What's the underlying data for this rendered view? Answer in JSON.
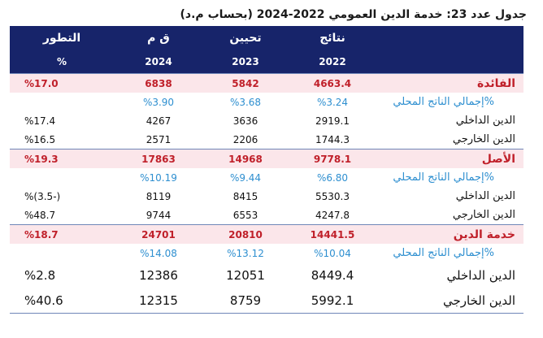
{
  "title": "جدول عدد  23: خدمة الدين العمومي 2022-2024 (بحساب م.د)",
  "header": {
    "row1": [
      "",
      "نتائج",
      "تحيين",
      "ق م",
      "التطور"
    ],
    "row2": [
      "",
      "2022",
      "2023",
      "2024",
      "%"
    ]
  },
  "rows": [
    {
      "type": "section",
      "cells": [
        "الفائدة",
        "4663.4",
        "5842",
        "6838",
        "%17.0"
      ]
    },
    {
      "type": "pct",
      "cells": [
        "%إجمالي الناتج المحلي",
        "%3.24",
        "%3.68",
        "%3.90",
        ""
      ]
    },
    {
      "type": "normal",
      "cells": [
        "الدين الداخلي",
        "2919.1",
        "3636",
        "4267",
        "%17.4"
      ]
    },
    {
      "type": "normal",
      "cells": [
        "الدين الخارجي",
        "1744.3",
        "2206",
        "2571",
        "%16.5"
      ]
    },
    {
      "type": "section",
      "cells": [
        "الأصل",
        "9778.1",
        "14968",
        "17863",
        "%19.3"
      ]
    },
    {
      "type": "pct",
      "cells": [
        "%إجمالي الناتج المحلي",
        "%6.80",
        "%9.44",
        "%10.19",
        ""
      ]
    },
    {
      "type": "normal",
      "cells": [
        "الدين الداخلي",
        "5530.3",
        "8415",
        "8119",
        "(-3.5)%"
      ]
    },
    {
      "type": "normal",
      "cells": [
        "الدين الخارجي",
        "4247.8",
        "6553",
        "9744",
        "%48.7"
      ]
    },
    {
      "type": "section",
      "cells": [
        "خدمة الدين",
        "14441.5",
        "20810",
        "24701",
        "%18.7"
      ]
    },
    {
      "type": "pct",
      "cells": [
        "%إجمالي الناتج المحلي",
        "%10.04",
        "%13.12",
        "%14.08",
        ""
      ]
    },
    {
      "type": "big",
      "cells": [
        "الدين الداخلي",
        "8449.4",
        "12051",
        "12386",
        "%2.8"
      ]
    },
    {
      "type": "big",
      "cells": [
        "الدين الخارجي",
        "5992.1",
        "8759",
        "12315",
        "%40.6"
      ]
    }
  ]
}
